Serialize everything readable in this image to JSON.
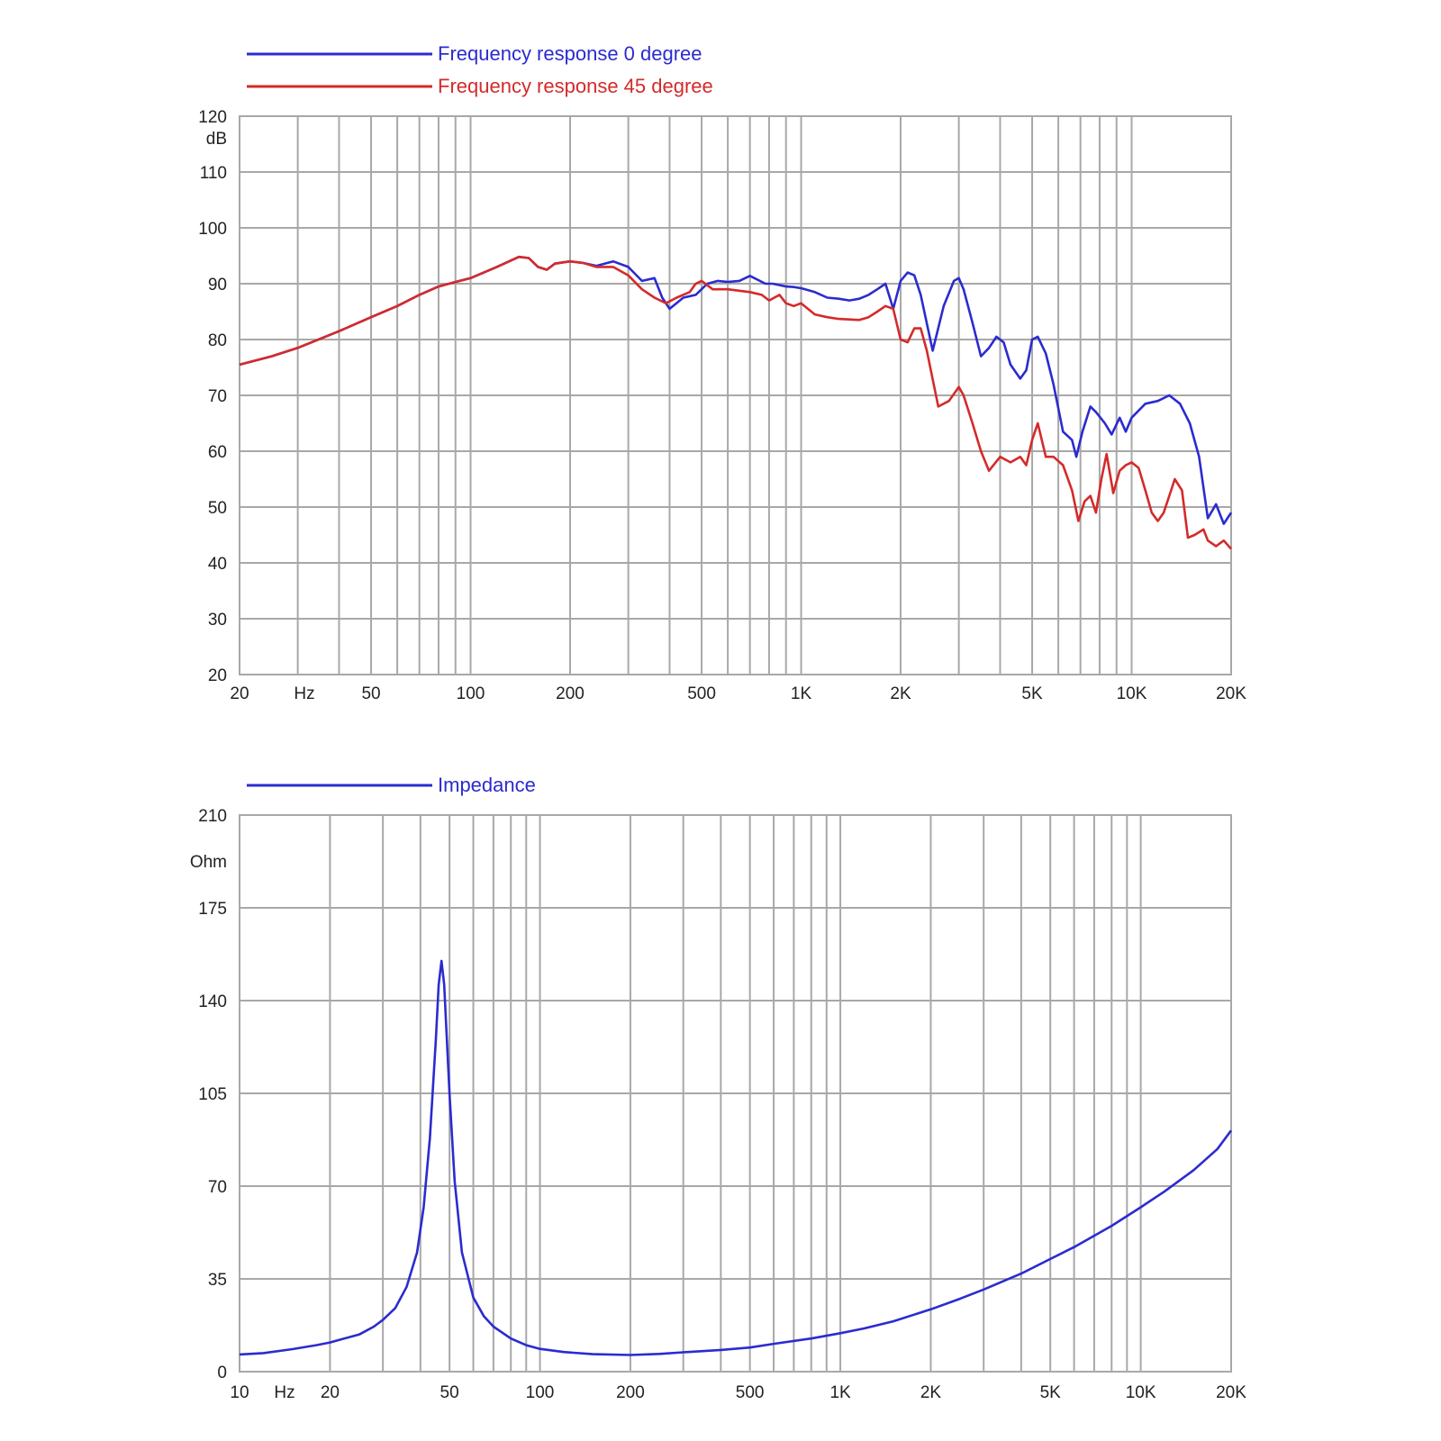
{
  "chart_data": [
    {
      "type": "line",
      "x_scale": "log",
      "xlim": [
        20,
        20000
      ],
      "ylim": [
        20,
        120
      ],
      "grid": true,
      "legend_position": "top-left",
      "ylabel": "dB",
      "xlabel": "Hz",
      "y_ticks": [
        "20",
        "30",
        "40",
        "50",
        "60",
        "70",
        "80",
        "90",
        "100",
        "110",
        "120"
      ],
      "x_ticks": [
        {
          "value": 20,
          "label": "20"
        },
        {
          "value": 50,
          "label": "50"
        },
        {
          "value": 100,
          "label": "100"
        },
        {
          "value": 200,
          "label": "200"
        },
        {
          "value": 500,
          "label": "500"
        },
        {
          "value": 1000,
          "label": "1K"
        },
        {
          "value": 2000,
          "label": "2K"
        },
        {
          "value": 5000,
          "label": "5K"
        },
        {
          "value": 10000,
          "label": "10K"
        },
        {
          "value": 20000,
          "label": "20K"
        }
      ],
      "x_grid": [
        20,
        30,
        40,
        50,
        60,
        70,
        80,
        90,
        100,
        200,
        300,
        400,
        500,
        600,
        700,
        800,
        900,
        1000,
        2000,
        3000,
        4000,
        5000,
        6000,
        7000,
        8000,
        9000,
        10000,
        20000
      ],
      "series": [
        {
          "name": "Frequency response 0 degree",
          "color": "#2b2bd0",
          "points": [
            [
              20,
              75.5
            ],
            [
              25,
              77
            ],
            [
              30,
              78.5
            ],
            [
              40,
              81.5
            ],
            [
              50,
              84
            ],
            [
              60,
              86
            ],
            [
              70,
              88
            ],
            [
              80,
              89.5
            ],
            [
              90,
              90.3
            ],
            [
              100,
              91
            ],
            [
              120,
              93
            ],
            [
              140,
              94.8
            ],
            [
              150,
              94.6
            ],
            [
              160,
              93
            ],
            [
              170,
              92.5
            ],
            [
              180,
              93.6
            ],
            [
              200,
              94
            ],
            [
              220,
              93.7
            ],
            [
              240,
              93.2
            ],
            [
              270,
              94
            ],
            [
              300,
              93
            ],
            [
              330,
              90.5
            ],
            [
              360,
              91
            ],
            [
              380,
              87.5
            ],
            [
              400,
              85.5
            ],
            [
              440,
              87.5
            ],
            [
              480,
              88
            ],
            [
              520,
              90
            ],
            [
              560,
              90.5
            ],
            [
              600,
              90.3
            ],
            [
              650,
              90.5
            ],
            [
              700,
              91.4
            ],
            [
              780,
              90
            ],
            [
              820,
              90
            ],
            [
              900,
              89.5
            ],
            [
              950,
              89.4
            ],
            [
              1000,
              89.2
            ],
            [
              1100,
              88.5
            ],
            [
              1200,
              87.5
            ],
            [
              1300,
              87.3
            ],
            [
              1400,
              87
            ],
            [
              1500,
              87.3
            ],
            [
              1600,
              88
            ],
            [
              1700,
              89
            ],
            [
              1800,
              90
            ],
            [
              1900,
              85.5
            ],
            [
              2000,
              90.5
            ],
            [
              2100,
              92
            ],
            [
              2200,
              91.5
            ],
            [
              2300,
              88
            ],
            [
              2500,
              78
            ],
            [
              2700,
              86
            ],
            [
              2900,
              90.5
            ],
            [
              3000,
              91
            ],
            [
              3100,
              89
            ],
            [
              3300,
              83
            ],
            [
              3500,
              77
            ],
            [
              3700,
              78.5
            ],
            [
              3900,
              80.5
            ],
            [
              4100,
              79.5
            ],
            [
              4300,
              75.5
            ],
            [
              4600,
              73
            ],
            [
              4800,
              74.5
            ],
            [
              5000,
              80
            ],
            [
              5200,
              80.5
            ],
            [
              5500,
              77.5
            ],
            [
              5800,
              72
            ],
            [
              6200,
              63.5
            ],
            [
              6600,
              62
            ],
            [
              6800,
              59
            ],
            [
              7100,
              63.5
            ],
            [
              7500,
              68
            ],
            [
              7800,
              67
            ],
            [
              8300,
              65
            ],
            [
              8700,
              63
            ],
            [
              9200,
              66
            ],
            [
              9600,
              63.5
            ],
            [
              10000,
              66
            ],
            [
              11000,
              68.5
            ],
            [
              12000,
              69
            ],
            [
              13000,
              70
            ],
            [
              14000,
              68.5
            ],
            [
              15000,
              65
            ],
            [
              16000,
              59
            ],
            [
              17000,
              48
            ],
            [
              18000,
              50.5
            ],
            [
              19000,
              47
            ],
            [
              20000,
              49
            ]
          ]
        },
        {
          "name": "Frequency response 45 degree",
          "color": "#d42a2a",
          "points": [
            [
              20,
              75.5
            ],
            [
              25,
              77
            ],
            [
              30,
              78.5
            ],
            [
              40,
              81.5
            ],
            [
              50,
              84
            ],
            [
              60,
              86
            ],
            [
              70,
              88
            ],
            [
              80,
              89.5
            ],
            [
              90,
              90.3
            ],
            [
              100,
              91
            ],
            [
              120,
              93
            ],
            [
              140,
              94.8
            ],
            [
              150,
              94.6
            ],
            [
              160,
              93
            ],
            [
              170,
              92.5
            ],
            [
              180,
              93.6
            ],
            [
              200,
              94
            ],
            [
              220,
              93.7
            ],
            [
              240,
              93
            ],
            [
              270,
              93
            ],
            [
              300,
              91.5
            ],
            [
              330,
              89
            ],
            [
              360,
              87.5
            ],
            [
              390,
              86.5
            ],
            [
              420,
              87.5
            ],
            [
              460,
              88.5
            ],
            [
              480,
              90
            ],
            [
              500,
              90.5
            ],
            [
              540,
              89
            ],
            [
              600,
              89
            ],
            [
              700,
              88.5
            ],
            [
              760,
              88
            ],
            [
              800,
              87
            ],
            [
              860,
              88
            ],
            [
              900,
              86.5
            ],
            [
              950,
              86
            ],
            [
              1000,
              86.5
            ],
            [
              1100,
              84.5
            ],
            [
              1200,
              84
            ],
            [
              1300,
              83.7
            ],
            [
              1500,
              83.5
            ],
            [
              1600,
              84
            ],
            [
              1700,
              85
            ],
            [
              1800,
              86
            ],
            [
              1900,
              85.5
            ],
            [
              2000,
              80
            ],
            [
              2100,
              79.5
            ],
            [
              2200,
              82
            ],
            [
              2300,
              82
            ],
            [
              2400,
              78
            ],
            [
              2600,
              68
            ],
            [
              2800,
              69
            ],
            [
              3000,
              71.5
            ],
            [
              3100,
              70
            ],
            [
              3300,
              65
            ],
            [
              3500,
              60
            ],
            [
              3700,
              56.5
            ],
            [
              4000,
              59
            ],
            [
              4300,
              58
            ],
            [
              4600,
              59
            ],
            [
              4800,
              57.5
            ],
            [
              5000,
              62
            ],
            [
              5200,
              65
            ],
            [
              5500,
              59
            ],
            [
              5800,
              59
            ],
            [
              6200,
              57.5
            ],
            [
              6600,
              53
            ],
            [
              6900,
              47.5
            ],
            [
              7200,
              51
            ],
            [
              7500,
              52
            ],
            [
              7800,
              49
            ],
            [
              8100,
              55
            ],
            [
              8400,
              59.5
            ],
            [
              8800,
              52.5
            ],
            [
              9200,
              56.5
            ],
            [
              9600,
              57.5
            ],
            [
              10000,
              58
            ],
            [
              10500,
              57
            ],
            [
              11000,
              53
            ],
            [
              11500,
              49
            ],
            [
              12000,
              47.5
            ],
            [
              12500,
              49
            ],
            [
              13000,
              52
            ],
            [
              13500,
              55
            ],
            [
              14200,
              53
            ],
            [
              14800,
              44.5
            ],
            [
              15500,
              45
            ],
            [
              16500,
              46
            ],
            [
              17000,
              44
            ],
            [
              18000,
              43
            ],
            [
              19000,
              44
            ],
            [
              20000,
              42.5
            ]
          ]
        }
      ]
    },
    {
      "type": "line",
      "x_scale": "log",
      "xlim": [
        10,
        20000
      ],
      "ylim": [
        0,
        210
      ],
      "grid": true,
      "legend_position": "top-left",
      "ylabel": "Ohm",
      "xlabel": "Hz",
      "y_ticks": [
        "0",
        "35",
        "70",
        "105",
        "140",
        "175",
        "210"
      ],
      "x_ticks": [
        {
          "value": 10,
          "label": "10"
        },
        {
          "value": 20,
          "label": "20"
        },
        {
          "value": 50,
          "label": "50"
        },
        {
          "value": 100,
          "label": "100"
        },
        {
          "value": 200,
          "label": "200"
        },
        {
          "value": 500,
          "label": "500"
        },
        {
          "value": 1000,
          "label": "1K"
        },
        {
          "value": 2000,
          "label": "2K"
        },
        {
          "value": 5000,
          "label": "5K"
        },
        {
          "value": 10000,
          "label": "10K"
        },
        {
          "value": 20000,
          "label": "20K"
        }
      ],
      "x_grid": [
        10,
        20,
        30,
        40,
        50,
        60,
        70,
        80,
        90,
        100,
        200,
        300,
        400,
        500,
        600,
        700,
        800,
        900,
        1000,
        2000,
        3000,
        4000,
        5000,
        6000,
        7000,
        8000,
        9000,
        10000,
        20000
      ],
      "series": [
        {
          "name": "Impedance",
          "color": "#2b2bd0",
          "points": [
            [
              10,
              6.5
            ],
            [
              12,
              7
            ],
            [
              15,
              8.5
            ],
            [
              18,
              10
            ],
            [
              20,
              11
            ],
            [
              22,
              12.3
            ],
            [
              25,
              14
            ],
            [
              28,
              17
            ],
            [
              30,
              19.5
            ],
            [
              33,
              24
            ],
            [
              36,
              32
            ],
            [
              39,
              45
            ],
            [
              41,
              62
            ],
            [
              43,
              88
            ],
            [
              45,
              125
            ],
            [
              46,
              146
            ],
            [
              47,
              155
            ],
            [
              48,
              146
            ],
            [
              50,
              105
            ],
            [
              52,
              72
            ],
            [
              55,
              45
            ],
            [
              60,
              28
            ],
            [
              65,
              21
            ],
            [
              70,
              17
            ],
            [
              80,
              12.5
            ],
            [
              90,
              10
            ],
            [
              100,
              8.6
            ],
            [
              120,
              7.4
            ],
            [
              150,
              6.6
            ],
            [
              200,
              6.3
            ],
            [
              250,
              6.7
            ],
            [
              300,
              7.3
            ],
            [
              400,
              8.2
            ],
            [
              500,
              9.1
            ],
            [
              600,
              10.5
            ],
            [
              800,
              12.5
            ],
            [
              1000,
              14.5
            ],
            [
              1200,
              16.3
            ],
            [
              1500,
              19
            ],
            [
              2000,
              23.5
            ],
            [
              2500,
              27.5
            ],
            [
              3000,
              31
            ],
            [
              4000,
              37
            ],
            [
              5000,
              42.5
            ],
            [
              6000,
              47
            ],
            [
              8000,
              55
            ],
            [
              10000,
              62
            ],
            [
              12000,
              68
            ],
            [
              15000,
              76
            ],
            [
              18000,
              84
            ],
            [
              20000,
              91
            ]
          ]
        }
      ]
    }
  ]
}
